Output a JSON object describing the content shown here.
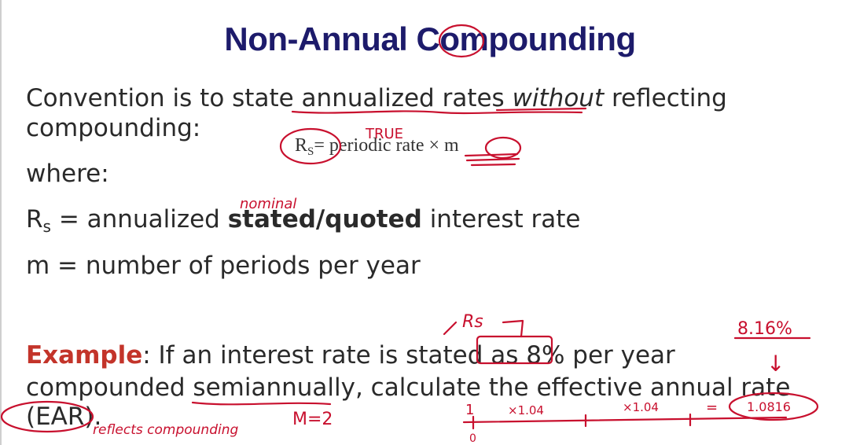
{
  "slide": {
    "title": "Non-Annual Compounding",
    "line1": {
      "pre": "Convention is to state ",
      "annualized": "annualized",
      "mid": " rates ",
      "without": "without",
      "post": " reflecting"
    },
    "line2": "compounding:",
    "formula": {
      "r": "R",
      "s": "S",
      "rest": "= periodic rate × m"
    },
    "where": "where:",
    "def1": {
      "r": "R",
      "s": "s",
      "pre": " = annualized ",
      "bold": "stated/quoted",
      "post": " interest rate"
    },
    "def2": "m = number of periods per year",
    "example": {
      "label": "Example",
      "line1": ": If an interest rate is stated as 8% per year",
      "line2": "compounded semiannually, calculate the effective annual rate",
      "line3": "(EAR)."
    }
  },
  "annotations": {
    "true_note": "TRUE",
    "nominal_note": "nominal",
    "rs_note": "Rs",
    "ear_note": "8.16%",
    "arrow": "↓",
    "reflects": "reflects compounding",
    "m_eq": "M=2",
    "one": "1",
    "zero": "0",
    "mult1": "×1.04",
    "mult2": "×1.04",
    "eq": "=",
    "result": "1.0816",
    "ink_color": "#c8102e"
  },
  "colors": {
    "title": "#1d1b6b",
    "body": "#2a2a2a",
    "example_label": "#c3342a"
  }
}
